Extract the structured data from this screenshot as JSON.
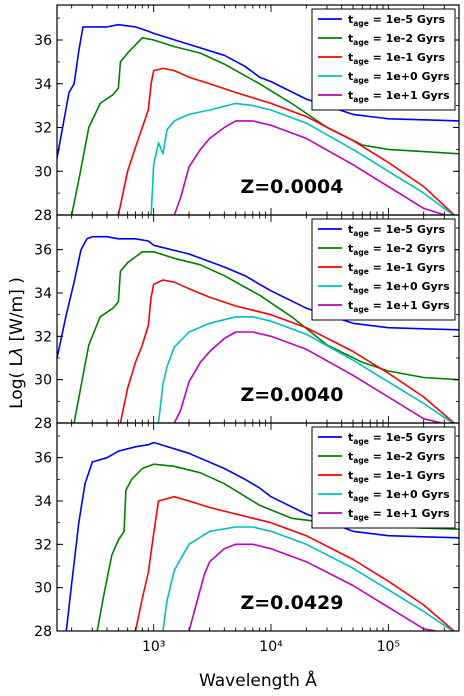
{
  "figure": {
    "xlabel": "Wavelength Å",
    "ylabel": "Log( L_λ [W/m] )"
  },
  "chart_data": [
    {
      "type": "line",
      "metallicity_label": "Z=0.0004",
      "x_scale": "log",
      "xlim": [
        150,
        400000
      ],
      "ylim": [
        28,
        37.6
      ],
      "ytick_labels": [
        "28",
        "30",
        "32",
        "34",
        "36"
      ],
      "xtick_labels": [],
      "legend_placement": "top-right",
      "series": [
        {
          "name": "t_age = 1e-5 Gyrs",
          "label_main": "t",
          "label_sub": "age",
          "label_rest": " = 1e-5 Gyrs",
          "color": "#0000ff",
          "x": [
            150,
            170,
            190,
            210,
            230,
            250,
            300,
            400,
            500,
            700,
            900,
            1000,
            2000,
            4000,
            6000,
            8000,
            10000,
            20000,
            50000,
            100000,
            200000,
            400000
          ],
          "y": [
            30.6,
            32.2,
            33.6,
            34.0,
            35.5,
            36.6,
            36.6,
            36.6,
            36.7,
            36.6,
            36.4,
            36.3,
            35.8,
            35.3,
            34.8,
            34.3,
            34.1,
            33.3,
            32.6,
            32.4,
            32.35,
            32.3
          ]
        },
        {
          "name": "t_age = 1e-2 Gyrs",
          "label_main": "t",
          "label_sub": "age",
          "label_rest": " = 1e-2 Gyrs",
          "color": "#008000",
          "x": [
            200,
            230,
            280,
            350,
            450,
            500,
            520,
            600,
            800,
            1000,
            1500,
            2500,
            4000,
            8000,
            15000,
            30000,
            60000,
            100000,
            200000,
            400000
          ],
          "y": [
            28,
            29.6,
            32.0,
            33.1,
            33.5,
            33.8,
            35.0,
            35.4,
            36.1,
            36.0,
            35.7,
            35.4,
            34.9,
            34.0,
            33.1,
            32.0,
            31.2,
            31.0,
            30.9,
            30.8
          ]
        },
        {
          "name": "t_age = 1e-1 Gyrs",
          "label_main": "t",
          "label_sub": "age",
          "label_rest": " = 1e-1 Gyrs",
          "color": "#ff0000",
          "x": [
            500,
            600,
            700,
            800,
            900,
            950,
            1000,
            1200,
            1500,
            2000,
            3000,
            5000,
            10000,
            20000,
            50000,
            100000,
            200000,
            400000
          ],
          "y": [
            28,
            30.0,
            31.1,
            32.0,
            32.8,
            34.0,
            34.6,
            34.7,
            34.6,
            34.3,
            34.0,
            33.6,
            33.1,
            32.5,
            31.4,
            30.4,
            29.3,
            27.8
          ]
        },
        {
          "name": "t_age = 1e+0 Gyrs",
          "label_main": "t",
          "label_sub": "age",
          "label_rest": " = 1e+0 Gyrs",
          "color": "#00bfbf",
          "x": [
            950,
            1000,
            1100,
            1200,
            1300,
            1500,
            2000,
            3000,
            5000,
            7000,
            10000,
            20000,
            50000,
            100000,
            200000,
            400000
          ],
          "y": [
            28,
            30.3,
            31.3,
            30.8,
            31.9,
            32.3,
            32.6,
            32.8,
            33.1,
            33.0,
            32.8,
            32.2,
            31.0,
            30.0,
            29.0,
            27.8
          ]
        },
        {
          "name": "t_age = 1e+1 Gyrs",
          "label_main": "t",
          "label_sub": "age",
          "label_rest": " = 1e+1 Gyrs",
          "color": "#bf00bf",
          "x": [
            1500,
            1700,
            2000,
            2500,
            3000,
            4000,
            5000,
            7000,
            10000,
            20000,
            50000,
            100000,
            200000,
            400000
          ],
          "y": [
            28,
            28.8,
            30.2,
            31.0,
            31.5,
            32.0,
            32.3,
            32.3,
            32.1,
            31.5,
            30.3,
            29.3,
            28.3,
            27.8
          ]
        }
      ]
    },
    {
      "type": "line",
      "metallicity_label": "Z=0.0040",
      "x_scale": "log",
      "xlim": [
        150,
        400000
      ],
      "ylim": [
        28,
        37.6
      ],
      "ytick_labels": [
        "28",
        "30",
        "32",
        "34",
        "36"
      ],
      "xtick_labels": [],
      "legend_placement": "top-right",
      "series": [
        {
          "name": "t_age = 1e-5 Gyrs",
          "label_main": "t",
          "label_sub": "age",
          "label_rest": " = 1e-5 Gyrs",
          "color": "#0000ff",
          "x": [
            150,
            180,
            210,
            240,
            270,
            300,
            400,
            500,
            700,
            900,
            1000,
            2000,
            4000,
            6000,
            8000,
            10000,
            20000,
            50000,
            100000,
            200000,
            400000
          ],
          "y": [
            31.0,
            33.0,
            34.5,
            36.0,
            36.5,
            36.6,
            36.6,
            36.5,
            36.5,
            36.4,
            36.2,
            35.8,
            35.2,
            34.8,
            34.4,
            34.1,
            33.3,
            32.6,
            32.4,
            32.35,
            32.3
          ]
        },
        {
          "name": "t_age = 1e-2 Gyrs",
          "label_main": "t",
          "label_sub": "age",
          "label_rest": " = 1e-2 Gyrs",
          "color": "#008000",
          "x": [
            210,
            240,
            280,
            350,
            450,
            500,
            520,
            600,
            800,
            1000,
            1500,
            2500,
            4000,
            8000,
            15000,
            30000,
            60000,
            100000,
            200000,
            400000
          ],
          "y": [
            28,
            29.7,
            31.6,
            32.9,
            33.3,
            33.6,
            35.0,
            35.4,
            35.9,
            35.9,
            35.6,
            35.3,
            34.8,
            33.9,
            32.9,
            31.6,
            30.8,
            30.4,
            30.1,
            30.0
          ]
        },
        {
          "name": "t_age = 1e-1 Gyrs",
          "label_main": "t",
          "label_sub": "age",
          "label_rest": " = 1e-1 Gyrs",
          "color": "#ff0000",
          "x": [
            520,
            600,
            700,
            800,
            900,
            950,
            1000,
            1200,
            1500,
            2000,
            3000,
            5000,
            10000,
            20000,
            50000,
            100000,
            200000,
            400000
          ],
          "y": [
            28,
            29.6,
            30.8,
            31.6,
            32.5,
            33.8,
            34.4,
            34.6,
            34.5,
            34.2,
            33.8,
            33.4,
            33.0,
            32.4,
            31.3,
            30.3,
            29.2,
            27.8
          ]
        },
        {
          "name": "t_age = 1e+0 Gyrs",
          "label_main": "t",
          "label_sub": "age",
          "label_rest": " = 1e+0 Gyrs",
          "color": "#00bfbf",
          "x": [
            1100,
            1200,
            1300,
            1500,
            2000,
            3000,
            5000,
            7000,
            10000,
            20000,
            50000,
            100000,
            200000,
            400000
          ],
          "y": [
            28,
            29.8,
            30.6,
            31.5,
            32.2,
            32.6,
            32.9,
            32.9,
            32.7,
            32.1,
            30.9,
            29.9,
            28.9,
            27.8
          ]
        },
        {
          "name": "t_age = 1e+1 Gyrs",
          "label_main": "t",
          "label_sub": "age",
          "label_rest": " = 1e+1 Gyrs",
          "color": "#bf00bf",
          "x": [
            1500,
            1700,
            2000,
            2500,
            3000,
            4000,
            5000,
            7000,
            10000,
            20000,
            50000,
            100000,
            200000,
            400000
          ],
          "y": [
            28,
            28.6,
            29.9,
            30.8,
            31.3,
            31.9,
            32.2,
            32.2,
            32.0,
            31.4,
            30.2,
            29.2,
            28.2,
            27.8
          ]
        }
      ]
    },
    {
      "type": "line",
      "metallicity_label": "Z=0.0429",
      "x_scale": "log",
      "xlim": [
        150,
        400000
      ],
      "ylim": [
        28,
        37.6
      ],
      "ytick_labels": [
        "28",
        "30",
        "32",
        "34",
        "36"
      ],
      "xtick_labels": [
        "10³",
        "10⁴",
        "10⁵"
      ],
      "legend_placement": "top-right",
      "series": [
        {
          "name": "t_age = 1e-5 Gyrs",
          "label_main": "t",
          "label_sub": "age",
          "label_rest": " = 1e-5 Gyrs",
          "color": "#0000ff",
          "x": [
            180,
            200,
            230,
            260,
            300,
            400,
            500,
            700,
            900,
            1000,
            2000,
            4000,
            6000,
            8000,
            10000,
            20000,
            50000,
            100000,
            200000,
            400000
          ],
          "y": [
            28,
            30.2,
            33.0,
            34.8,
            35.8,
            36.0,
            36.3,
            36.5,
            36.6,
            36.7,
            36.2,
            35.5,
            35.0,
            34.6,
            34.2,
            33.4,
            32.6,
            32.4,
            32.35,
            32.3
          ]
        },
        {
          "name": "t_age = 1e-2 Gyrs",
          "label_main": "t",
          "label_sub": "age",
          "label_rest": " = 1e-2 Gyrs",
          "color": "#008000",
          "x": [
            330,
            380,
            440,
            500,
            560,
            580,
            650,
            800,
            1000,
            1500,
            2500,
            4000,
            8000,
            15000,
            30000,
            60000,
            100000,
            200000,
            400000
          ],
          "y": [
            28,
            29.8,
            31.5,
            32.2,
            32.6,
            34.5,
            35.0,
            35.5,
            35.7,
            35.6,
            35.3,
            34.8,
            33.8,
            33.2,
            33.0,
            32.9,
            32.8,
            32.75,
            32.7
          ]
        },
        {
          "name": "t_age = 1e-1 Gyrs",
          "label_main": "t",
          "label_sub": "age",
          "label_rest": " = 1e-1 Gyrs",
          "color": "#ff0000",
          "x": [
            700,
            800,
            900,
            1000,
            1100,
            1500,
            2000,
            3000,
            5000,
            10000,
            20000,
            50000,
            100000,
            200000,
            400000
          ],
          "y": [
            28,
            29.5,
            30.7,
            32.5,
            34.0,
            34.2,
            34.0,
            33.7,
            33.4,
            33.0,
            32.4,
            31.3,
            30.3,
            29.2,
            27.8
          ]
        },
        {
          "name": "t_age = 1e+0 Gyrs",
          "label_main": "t",
          "label_sub": "age",
          "label_rest": " = 1e+0 Gyrs",
          "color": "#00bfbf",
          "x": [
            1200,
            1300,
            1500,
            2000,
            3000,
            5000,
            7000,
            10000,
            20000,
            50000,
            100000,
            200000,
            400000
          ],
          "y": [
            28,
            29.4,
            30.8,
            32.0,
            32.6,
            32.8,
            32.8,
            32.6,
            32.0,
            30.9,
            29.9,
            28.9,
            27.8
          ]
        },
        {
          "name": "t_age = 1e+1 Gyrs",
          "label_main": "t",
          "label_sub": "age",
          "label_rest": " = 1e+1 Gyrs",
          "color": "#bf00bf",
          "x": [
            2000,
            2300,
            2700,
            3000,
            4000,
            5000,
            7000,
            10000,
            20000,
            50000,
            100000,
            200000,
            400000
          ],
          "y": [
            28,
            29.2,
            30.6,
            31.2,
            31.8,
            32.0,
            32.0,
            31.8,
            31.2,
            30.1,
            29.1,
            28.1,
            27.8
          ]
        }
      ]
    }
  ]
}
